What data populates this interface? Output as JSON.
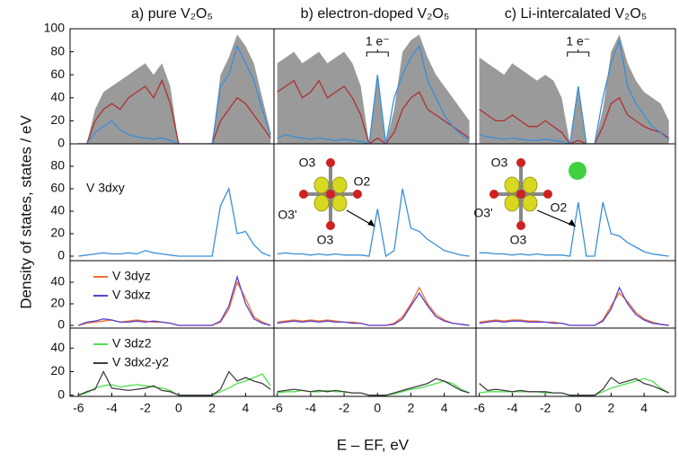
{
  "xlabel": "E – EF, eV",
  "ylabel": "Density of states, states / eV",
  "chart_data": [
    {
      "type": "line",
      "title": "a) pure V₂O₅",
      "x": [
        -6,
        -5.5,
        -5,
        -4.5,
        -4,
        -3.5,
        -3,
        -2.5,
        -2,
        -1.5,
        -1,
        -0.5,
        0,
        0.5,
        1,
        1.5,
        2,
        2.5,
        3,
        3.5,
        4,
        4.5,
        5,
        5.5
      ],
      "xlim": [
        -6.5,
        5.7
      ],
      "ylim": [
        0,
        100
      ],
      "yticks": [
        0,
        20,
        40,
        60,
        80,
        100
      ],
      "series": [
        {
          "color": "#9a9a9a",
          "area": true,
          "values": [
            0,
            0,
            30,
            45,
            50,
            55,
            60,
            65,
            70,
            60,
            70,
            50,
            0,
            0,
            0,
            0,
            0,
            60,
            75,
            95,
            85,
            70,
            40,
            10
          ]
        },
        {
          "color": "#b03030",
          "values": [
            0,
            0,
            20,
            30,
            35,
            30,
            40,
            45,
            50,
            40,
            55,
            35,
            0,
            0,
            0,
            0,
            0,
            20,
            30,
            40,
            35,
            25,
            15,
            5
          ]
        },
        {
          "color": "#3a8fd9",
          "values": [
            0,
            0,
            10,
            15,
            20,
            12,
            8,
            6,
            5,
            4,
            5,
            3,
            0,
            0,
            0,
            0,
            0,
            50,
            60,
            85,
            70,
            55,
            30,
            8
          ]
        }
      ]
    },
    {
      "type": "line",
      "title": "b) electron-doped V₂O₅",
      "x": [
        -6,
        -5.5,
        -5,
        -4.5,
        -4,
        -3.5,
        -3,
        -2.5,
        -2,
        -1.5,
        -1,
        -0.5,
        0,
        0.5,
        1,
        1.5,
        2,
        2.5,
        3,
        3.5,
        4,
        4.5,
        5,
        5.5
      ],
      "xlim": [
        -6.2,
        5.9
      ],
      "ylim": [
        0,
        100
      ],
      "annotations": [
        "1 e⁻"
      ],
      "series": [
        {
          "color": "#9a9a9a",
          "area": true,
          "values": [
            70,
            75,
            80,
            70,
            75,
            80,
            70,
            75,
            80,
            70,
            50,
            0,
            60,
            0,
            30,
            80,
            90,
            95,
            75,
            60,
            50,
            40,
            30,
            20
          ]
        },
        {
          "color": "#b03030",
          "values": [
            45,
            50,
            55,
            40,
            45,
            55,
            40,
            45,
            50,
            40,
            25,
            0,
            5,
            0,
            10,
            30,
            40,
            45,
            30,
            25,
            20,
            15,
            10,
            5
          ]
        },
        {
          "color": "#3a8fd9",
          "values": [
            5,
            8,
            6,
            5,
            4,
            5,
            4,
            3,
            4,
            3,
            2,
            0,
            60,
            0,
            40,
            60,
            75,
            85,
            55,
            40,
            25,
            15,
            8,
            3
          ]
        }
      ]
    },
    {
      "type": "line",
      "title": "c) Li-intercalated V₂O₅",
      "x": [
        -6,
        -5.5,
        -5,
        -4.5,
        -4,
        -3.5,
        -3,
        -2.5,
        -2,
        -1.5,
        -1,
        -0.5,
        0,
        0.5,
        1,
        1.5,
        2,
        2.5,
        3,
        3.5,
        4,
        4.5,
        5,
        5.5
      ],
      "xlim": [
        -6.2,
        5.9
      ],
      "ylim": [
        0,
        100
      ],
      "annotations": [
        "1 e⁻"
      ],
      "series": [
        {
          "color": "#9a9a9a",
          "area": true,
          "values": [
            75,
            70,
            65,
            60,
            70,
            65,
            60,
            55,
            60,
            55,
            40,
            0,
            50,
            0,
            0,
            30,
            80,
            95,
            70,
            55,
            45,
            40,
            35,
            20
          ]
        },
        {
          "color": "#b03030",
          "values": [
            30,
            25,
            20,
            20,
            25,
            20,
            15,
            15,
            20,
            15,
            10,
            0,
            3,
            0,
            0,
            15,
            35,
            40,
            25,
            20,
            15,
            12,
            10,
            5
          ]
        },
        {
          "color": "#3a8fd9",
          "values": [
            8,
            6,
            5,
            4,
            5,
            4,
            3,
            3,
            4,
            3,
            2,
            0,
            50,
            0,
            0,
            40,
            70,
            90,
            50,
            35,
            25,
            15,
            10,
            3
          ]
        }
      ]
    },
    {
      "type": "line",
      "x": [
        -6,
        -5.5,
        -5,
        -4.5,
        -4,
        -3.5,
        -3,
        -2.5,
        -2,
        -1.5,
        -1,
        -0.5,
        0,
        0.5,
        1,
        1.5,
        2,
        2.5,
        3,
        3.5,
        4,
        4.5,
        5,
        5.5
      ],
      "xlim": [
        -6.5,
        5.7
      ],
      "ylim": [
        -4,
        100
      ],
      "yticks": [
        0,
        20,
        40,
        60,
        80
      ],
      "series": [
        {
          "name": "V 3dxy",
          "color": "#3a8fd9",
          "values": [
            0,
            1,
            2,
            3,
            2,
            2,
            3,
            2,
            5,
            3,
            2,
            1,
            0,
            0,
            0,
            0,
            0,
            45,
            60,
            20,
            22,
            10,
            3,
            0
          ]
        }
      ]
    },
    {
      "type": "line",
      "x": [
        -6,
        -5.5,
        -5,
        -4.5,
        -4,
        -3.5,
        -3,
        -2.5,
        -2,
        -1.5,
        -1,
        -0.5,
        0,
        0.5,
        1,
        1.5,
        2,
        2.5,
        3,
        3.5,
        4,
        4.5,
        5,
        5.5
      ],
      "xlim": [
        -6.2,
        5.9
      ],
      "ylim": [
        -4,
        100
      ],
      "annotations": [
        "O3",
        "O2",
        "O3'",
        "O3"
      ],
      "series": [
        {
          "color": "#3a8fd9",
          "values": [
            2,
            3,
            2,
            2,
            1,
            2,
            1,
            2,
            1,
            1,
            1,
            0,
            42,
            0,
            5,
            60,
            25,
            22,
            15,
            10,
            5,
            3,
            1,
            0
          ]
        }
      ]
    },
    {
      "type": "line",
      "x": [
        -6,
        -5.5,
        -5,
        -4.5,
        -4,
        -3.5,
        -3,
        -2.5,
        -2,
        -1.5,
        -1,
        -0.5,
        0,
        0.5,
        1,
        1.5,
        2,
        2.5,
        3,
        3.5,
        4,
        4.5,
        5,
        5.5
      ],
      "xlim": [
        -6.2,
        5.9
      ],
      "ylim": [
        -4,
        100
      ],
      "annotations": [
        "O3",
        "O2",
        "O3'",
        "O3"
      ],
      "series": [
        {
          "color": "#3a8fd9",
          "values": [
            3,
            3,
            2,
            2,
            1,
            2,
            1,
            2,
            1,
            1,
            1,
            0,
            48,
            0,
            0,
            48,
            20,
            18,
            12,
            8,
            4,
            2,
            1,
            0
          ]
        }
      ]
    },
    {
      "type": "line",
      "x": [
        -6,
        -5.5,
        -5,
        -4.5,
        -4,
        -3.5,
        -3,
        -2.5,
        -2,
        -1.5,
        -1,
        -0.5,
        0,
        0.5,
        1,
        1.5,
        2,
        2.5,
        3,
        3.5,
        4,
        4.5,
        5,
        5.5
      ],
      "xlim": [
        -6.5,
        5.7
      ],
      "ylim": [
        -2.5,
        60
      ],
      "yticks": [
        0,
        20,
        40
      ],
      "series": [
        {
          "name": "V 3dyz",
          "color": "#f07030",
          "values": [
            0,
            2,
            3,
            4,
            5,
            3,
            4,
            5,
            4,
            3,
            3,
            2,
            0,
            0,
            0,
            0,
            0,
            3,
            15,
            40,
            25,
            8,
            3,
            0
          ]
        },
        {
          "name": "V 3dxz",
          "color": "#5a3fd0",
          "values": [
            0,
            3,
            4,
            6,
            5,
            3,
            3,
            4,
            3,
            4,
            3,
            2,
            0,
            0,
            0,
            0,
            0,
            4,
            18,
            45,
            20,
            6,
            2,
            0
          ]
        }
      ]
    },
    {
      "type": "line",
      "x": [
        -6,
        -5.5,
        -5,
        -4.5,
        -4,
        -3.5,
        -3,
        -2.5,
        -2,
        -1.5,
        -1,
        -0.5,
        0,
        0.5,
        1,
        1.5,
        2,
        2.5,
        3,
        3.5,
        4,
        4.5,
        5,
        5.5
      ],
      "xlim": [
        -6.2,
        5.9
      ],
      "ylim": [
        -2.5,
        60
      ],
      "series": [
        {
          "color": "#f07030",
          "values": [
            3,
            4,
            5,
            4,
            5,
            4,
            5,
            4,
            3,
            3,
            2,
            0,
            0,
            0,
            2,
            8,
            20,
            35,
            20,
            10,
            5,
            2,
            1,
            0
          ]
        },
        {
          "color": "#5a3fd0",
          "values": [
            2,
            3,
            4,
            3,
            4,
            3,
            4,
            3,
            3,
            2,
            2,
            0,
            0,
            0,
            1,
            6,
            18,
            30,
            18,
            8,
            4,
            2,
            1,
            0
          ]
        }
      ]
    },
    {
      "type": "line",
      "x": [
        -6,
        -5.5,
        -5,
        -4.5,
        -4,
        -3.5,
        -3,
        -2.5,
        -2,
        -1.5,
        -1,
        -0.5,
        0,
        0.5,
        1,
        1.5,
        2,
        2.5,
        3,
        3.5,
        4,
        4.5,
        5,
        5.5
      ],
      "xlim": [
        -6.2,
        5.9
      ],
      "ylim": [
        -2.5,
        60
      ],
      "series": [
        {
          "color": "#f07030",
          "values": [
            3,
            4,
            5,
            4,
            5,
            5,
            4,
            4,
            3,
            3,
            2,
            0,
            0,
            0,
            0,
            5,
            18,
            30,
            22,
            12,
            6,
            3,
            1,
            0
          ]
        },
        {
          "color": "#5a3fd0",
          "values": [
            2,
            3,
            4,
            3,
            4,
            4,
            3,
            3,
            3,
            2,
            2,
            0,
            0,
            0,
            0,
            4,
            15,
            35,
            20,
            10,
            5,
            2,
            1,
            0
          ]
        }
      ]
    },
    {
      "type": "line",
      "x": [
        -6,
        -5.5,
        -5,
        -4.5,
        -4,
        -3.5,
        -3,
        -2.5,
        -2,
        -1.5,
        -1,
        -0.5,
        0,
        0.5,
        1,
        1.5,
        2,
        2.5,
        3,
        3.5,
        4,
        4.5,
        5,
        5.5
      ],
      "xlim": [
        -6.5,
        5.7
      ],
      "ylim": [
        -1,
        57
      ],
      "yticks": [
        0,
        20,
        40
      ],
      "xticks": [
        -6,
        -4,
        -2,
        0,
        2,
        4
      ],
      "series": [
        {
          "name": "V 3dz2",
          "color": "#50e050",
          "values": [
            0,
            2,
            6,
            8,
            9,
            7,
            8,
            9,
            8,
            7,
            6,
            4,
            0,
            0,
            0,
            0,
            0,
            3,
            6,
            10,
            12,
            15,
            18,
            8
          ]
        },
        {
          "name": "V 3dx2-y2",
          "color": "#404040",
          "values": [
            0,
            3,
            5,
            20,
            6,
            5,
            4,
            5,
            6,
            8,
            4,
            3,
            0,
            0,
            0,
            0,
            0,
            5,
            20,
            12,
            15,
            12,
            10,
            5
          ]
        }
      ]
    },
    {
      "type": "line",
      "x": [
        -6,
        -5.5,
        -5,
        -4.5,
        -4,
        -3.5,
        -3,
        -2.5,
        -2,
        -1.5,
        -1,
        -0.5,
        0,
        0.5,
        1,
        1.5,
        2,
        2.5,
        3,
        3.5,
        4,
        4.5,
        5,
        5.5
      ],
      "xlim": [
        -6.2,
        5.9
      ],
      "ylim": [
        -1,
        57
      ],
      "xticks": [
        -6,
        -4,
        -2,
        0,
        2,
        4
      ],
      "series": [
        {
          "color": "#50e050",
          "values": [
            2,
            3,
            3,
            4,
            3,
            3,
            4,
            3,
            3,
            2,
            2,
            0,
            0,
            0,
            1,
            3,
            5,
            6,
            8,
            10,
            12,
            10,
            5,
            2
          ]
        },
        {
          "color": "#404040",
          "values": [
            3,
            4,
            5,
            4,
            3,
            4,
            3,
            4,
            3,
            2,
            2,
            0,
            0,
            0,
            2,
            4,
            6,
            8,
            10,
            14,
            12,
            8,
            4,
            2
          ]
        }
      ]
    },
    {
      "type": "line",
      "x": [
        -6,
        -5.5,
        -5,
        -4.5,
        -4,
        -3.5,
        -3,
        -2.5,
        -2,
        -1.5,
        -1,
        -0.5,
        0,
        0.5,
        1,
        1.5,
        2,
        2.5,
        3,
        3.5,
        4,
        4.5,
        5,
        5.5
      ],
      "xlim": [
        -6.2,
        5.9
      ],
      "ylim": [
        -1,
        57
      ],
      "xticks": [
        -6,
        -4,
        -2,
        0,
        2,
        4
      ],
      "series": [
        {
          "color": "#50e050",
          "values": [
            2,
            3,
            3,
            3,
            3,
            3,
            3,
            3,
            2,
            2,
            2,
            0,
            0,
            0,
            0,
            3,
            6,
            8,
            10,
            12,
            14,
            12,
            6,
            2
          ]
        },
        {
          "color": "#404040",
          "values": [
            10,
            4,
            5,
            4,
            3,
            4,
            3,
            3,
            3,
            2,
            2,
            0,
            0,
            0,
            0,
            5,
            15,
            10,
            12,
            14,
            10,
            8,
            5,
            2
          ]
        }
      ]
    }
  ]
}
